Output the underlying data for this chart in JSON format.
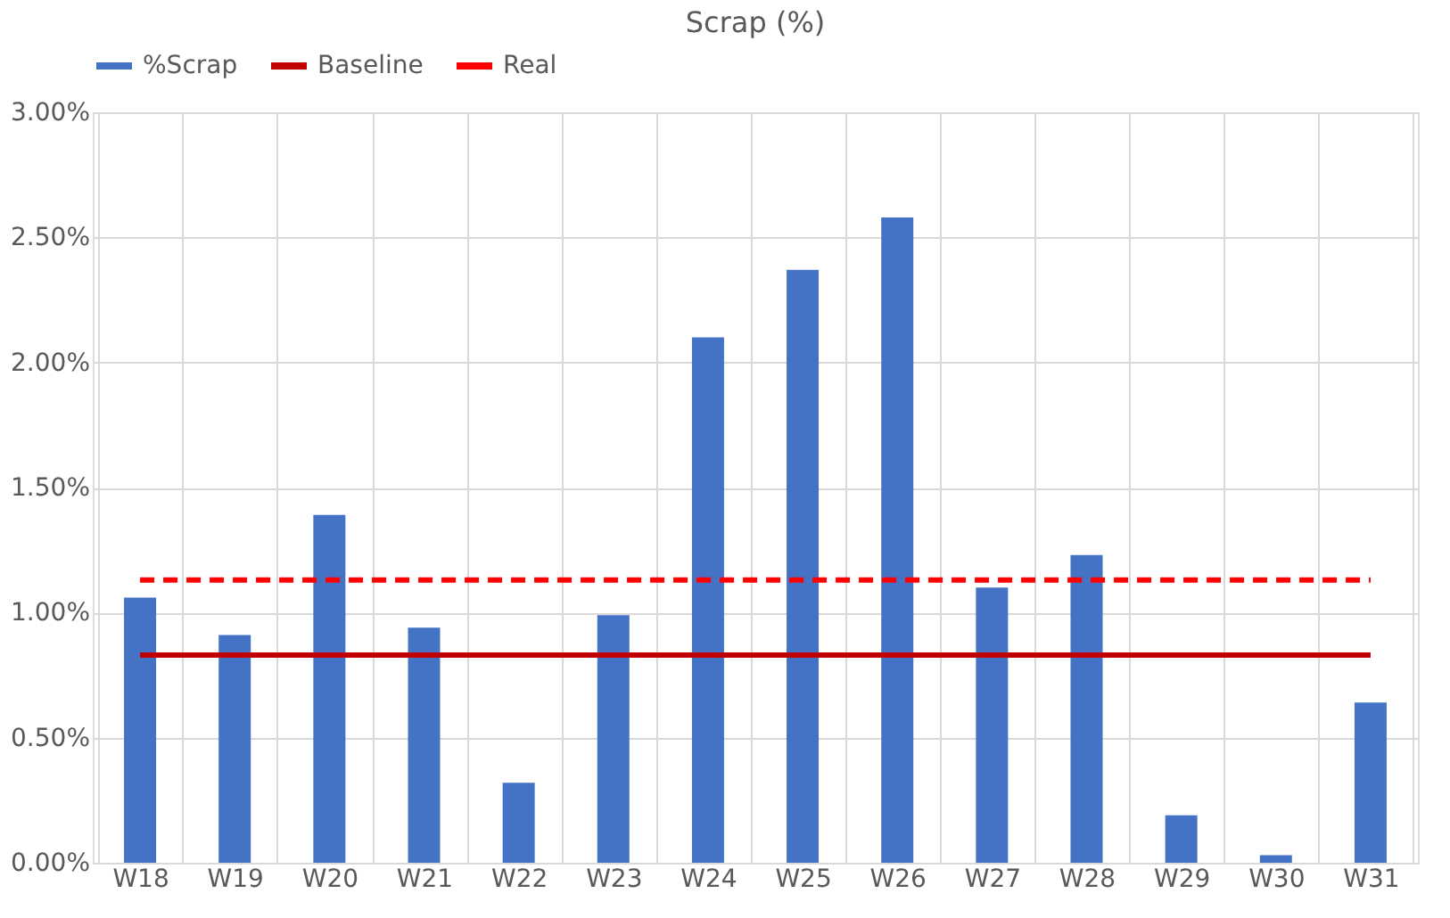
{
  "chart_data": {
    "type": "bar",
    "title": "Scrap (%)",
    "categories": [
      "W18",
      "W19",
      "W20",
      "W21",
      "W22",
      "W23",
      "W24",
      "W25",
      "W26",
      "W27",
      "W28",
      "W29",
      "W30",
      "W31"
    ],
    "series": [
      {
        "name": "%Scrap",
        "color": "#4472c4",
        "values": [
          1.06,
          0.91,
          1.39,
          0.94,
          0.32,
          0.99,
          2.1,
          2.37,
          2.58,
          1.1,
          1.23,
          0.19,
          0.03,
          0.64
        ]
      },
      {
        "name": "Baseline",
        "type": "line",
        "color": "#c00000",
        "line_style": "solid",
        "values": [
          0.83,
          0.83,
          0.83,
          0.83,
          0.83,
          0.83,
          0.83,
          0.83,
          0.83,
          0.83,
          0.83,
          0.83,
          0.83,
          0.83
        ]
      },
      {
        "name": "Real",
        "type": "line",
        "color": "#ff0000",
        "line_style": "dashed",
        "values": [
          1.13,
          1.13,
          1.13,
          1.13,
          1.13,
          1.13,
          1.13,
          1.13,
          1.13,
          1.13,
          1.13,
          1.13,
          1.13,
          1.13
        ]
      }
    ],
    "ylim": [
      0,
      3
    ],
    "yticks": [
      {
        "value": 0,
        "label": "0.00%"
      },
      {
        "value": 0.5,
        "label": "0.50%"
      },
      {
        "value": 1,
        "label": "1.00%"
      },
      {
        "value": 1.5,
        "label": "1.50%"
      },
      {
        "value": 2,
        "label": "2.00%"
      },
      {
        "value": 2.5,
        "label": "2.50%"
      },
      {
        "value": 3,
        "label": "3.00%"
      }
    ],
    "grid": true,
    "legend": "top",
    "marker": "none"
  }
}
